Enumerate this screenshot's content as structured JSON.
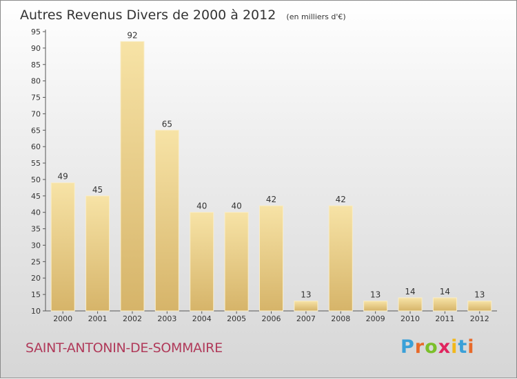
{
  "chart_data": {
    "type": "bar",
    "title": "Autres Revenus Divers de 2000 à 2012",
    "subtitle": "(en milliers d'€)",
    "categories": [
      "2000",
      "2001",
      "2002",
      "2003",
      "2004",
      "2005",
      "2006",
      "2007",
      "2008",
      "2009",
      "2010",
      "2011",
      "2012"
    ],
    "values": [
      49,
      45,
      92,
      65,
      40,
      40,
      42,
      13,
      42,
      13,
      14,
      14,
      13
    ],
    "ylim": [
      10,
      95
    ],
    "yticks": [
      10,
      15,
      20,
      25,
      30,
      35,
      40,
      45,
      50,
      55,
      60,
      65,
      70,
      75,
      80,
      85,
      90,
      95
    ],
    "xlabel": "",
    "ylabel": "",
    "grid": false,
    "bar_color": "#e8c777"
  },
  "footer": {
    "commune": "SAINT-ANTONIN-DE-SOMMAIRE",
    "brand": [
      "P",
      "r",
      "o",
      "x",
      "i",
      "t",
      "i"
    ],
    "brand_colors": [
      "#3aa0d8",
      "#e86a2a",
      "#7bbf2a",
      "#e0245e",
      "#f2b81a",
      "#3aa0d8",
      "#e86a2a"
    ]
  }
}
